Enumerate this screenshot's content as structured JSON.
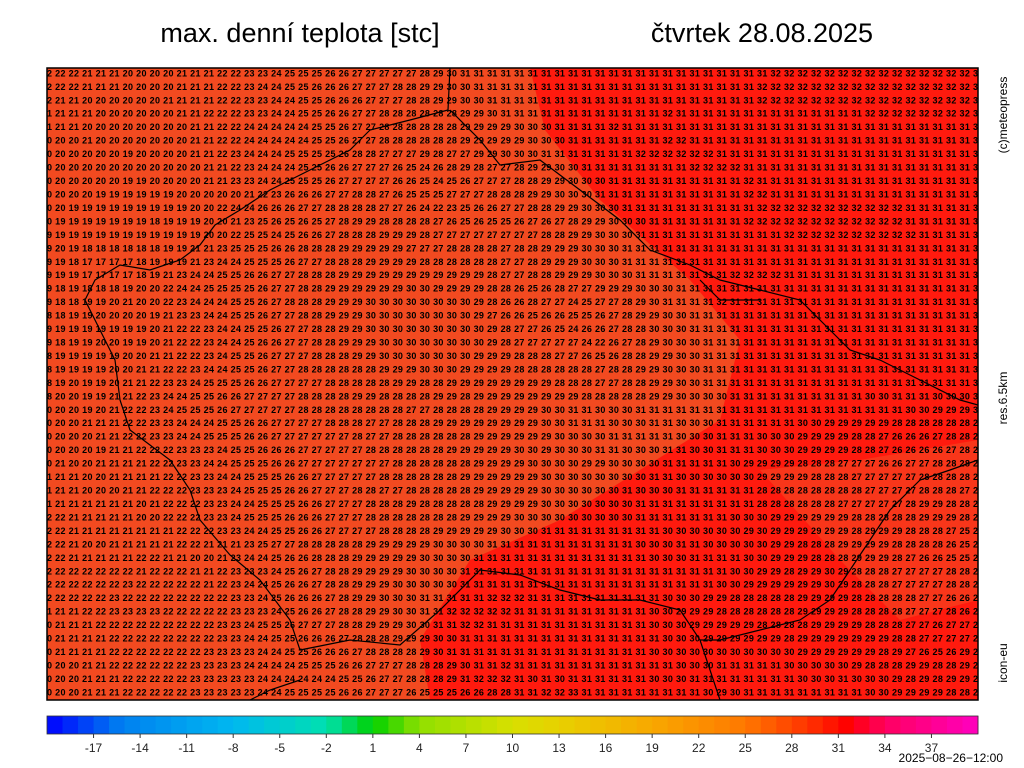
{
  "header": {
    "title": "max. denní teplota [stc]",
    "date": "čtvrtek 28.08.2025"
  },
  "side": {
    "copyright": "(c)meteopress",
    "resolution": "res.6.5km",
    "model": "icon-eu"
  },
  "footer": {
    "timestamp": "2025−08−26−12:00"
  },
  "colorbar": {
    "range": [
      -20,
      40
    ],
    "ticks": [
      -17,
      -14,
      -11,
      -8,
      -5,
      -2,
      1,
      4,
      7,
      10,
      13,
      16,
      19,
      22,
      25,
      28,
      31,
      34,
      37
    ]
  },
  "grid": {
    "rows": [
      "2 22 22 21 21 21 20 20 20 20 21 21 21 22 22 23 23 24 25 25 25 26 26 27 27 27 27 27 28 29 30 31 31 31 31 31 31 31 31 31 31 31 31 31 31 31 31 31 31 31 31 31 31 31 32 32 32 32 32 32 32 32 32 32 32 32 32 32 32 3",
      "2 22 22 21 21 21 20 20 20 20 21 21 21 22 22 23 24 24 25 25 26 26 26 27 27 27 28 28 29 29 30 30 31 31 31 31 31 31 31 31 31 31 31 31 31 31 31 31 31 31 31 31 31 32 32 32 32 32 32 32 32 32 32 32 32 32 32 32 32 3",
      "2 21 21 20 20 20 20 20 20 21 21 21 21 22 22 23 23 24 24 25 25 26 26 26 27 27 27 28 28 29 29 30 30 31 31 31 31 31 31 31 31 31 31 31 31 31 31 31 31 31 31 31 31 32 32 32 32 32 32 32 32 32 32 32 32 32 32 32 32 3",
      "1 21 21 21 20 20 20 20 20 20 21 21 22 22 22 23 23 24 24 25 25 26 26 27 27 28 28 28 28 28 28 29 29 30 31 31 31 31 31 31 31 31 31 31 31 31 32 31 31 31 31 31 31 31 31 31 31 31 31 31 31 32 32 32 32 32 32 32 32 3",
      "1 21 21 20 20 20 20 20 20 20 20 21 21 22 22 24 24 24 24 24 25 25 26 27 27 28 28 28 28 28 28 29 29 29 29 30 30 30 31 31 31 31 32 31 31 31 31 31 31 31 31 31 31 31 31 31 31 31 31 31 31 31 31 31 31 31 31 31 31 3",
      "0 20 20 21 20 20 20 20 20 20 20 21 21 22 22 24 24 24 24 24 25 25 26 27 27 28 28 28 28 28 28 29 29 29 29 29 30 30 30 31 31 31 31 31 31 31 32 32 31 31 31 31 31 31 31 31 31 31 31 31 31 31 31 31 31 31 31 31 31 3",
      "0 20 20 20 20 20 19 20 20 20 20 21 21 22 23 24 24 24 25 25 25 25 26 28 28 27 27 27 29 28 27 27 29 29 30 30 30 31 31 31 31 31 31 31 32 32 32 32 32 32 31 31 31 31 31 31 31 31 31 31 31 31 31 31 31 31 31 31 31 3",
      "0 20 20 20 20 20 20 20 20 20 20 20 21 21 22 23 24 24 24 25 25 26 26 27 27 27 26 25 24 26 28 29 28 27 27 28 29 29 30 30 31 31 31 31 31 31 31 31 32 32 32 32 31 31 31 31 31 31 31 31 31 31 31 31 31 31 31 31 31 3",
      "0 20 20 20 20 20 19 19 20 20 20 20 21 21 23 23 24 24 25 25 25 26 27 27 27 27 26 26 25 24 25 26 27 27 27 28 28 29 29 30 30 30 31 31 31 31 31 31 31 31 31 31 32 31 31 31 31 31 31 31 31 31 31 31 31 31 31 31 31 3",
      "0 20 20 20 19 19 19 19 19 19 20 20 20 20 20 21 22 23 26 26 26 27 27 28 28 27 26 25 25 25 27 27 27 28 28 28 29 29 30 30 30 31 31 31 31 31 31 31 31 31 31 31 32 32 31 31 31 31 31 31 31 31 31 31 31 31 31 31 31 3",
      "0 20 19 19 19 19 19 19 19 19 19 20 20 22 24 24 26 26 26 27 27 28 28 28 28 27 27 26 24 22 23 25 26 26 27 27 28 28 29 29 30 30 30 31 31 31 31 31 31 31 31 31 31 32 32 32 32 32 32 32 32 32 32 32 31 31 31 31 31 3",
      "0 19 19 19 19 19 19 19 18 19 19 19 20 20 21 23 25 26 25 26 25 27 28 29 29 28 28 28 28 27 26 25 26 25 25 26 27 26 27 28 29 29 30 30 30 31 31 31 31 31 31 31 32 32 32 32 32 32 32 32 32 32 32 32 31 31 31 31 31 3",
      "9 19 19 19 19 19 19 19 19 19 19 19 20 20 22 25 25 24 25 26 26 27 28 28 28 29 29 29 28 27 27 27 27 27 27 27 27 28 28 29 29 30 30 30 31 31 31 31 31 31 31 31 31 31 31 32 32 32 32 32 32 32 32 32 32 31 31 31 31 3",
      "9 20 19 18 18 18 18 18 18 19 19 21 21 23 25 25 25 26 26 28 28 28 29 29 29 29 29 27 27 27 28 28 28 28 27 28 28 29 29 29 30 30 30 31 31 31 31 31 31 31 31 31 31 31 31 31 31 31 31 31 31 31 31 31 31 31 31 31 31 3",
      "9 19 18 17 17 17 17 18 19 19 19 21 23 24 24 25 25 25 26 27 27 28 28 28 29 29 29 29 28 28 28 28 28 28 27 27 28 29 29 29 30 30 30 31 31 31 31 31 31 31 31 31 31 31 31 31 31 31 31 31 31 31 31 31 31 31 31 31 31 3",
      "9 19 19 17 17 17 17 18 19 21 23 24 24 25 25 26 26 27 27 28 28 28 29 29 29 29 29 29 29 29 29 29 29 28 27 27 28 28 29 29 29 30 30 30 31 31 31 31 31 31 31 32 32 32 32 31 31 31 31 31 31 31 31 31 31 31 31 31 31 3",
      "9 18 19 18 18 18 19 20 20 22 24 24 25 25 25 25 26 27 27 28 28 29 29 29 29 29 29 30 30 29 29 29 29 28 28 26 25 26 28 27 27 29 29 29 30 30 30 31 31 31 31 31 31 31 31 31 31 31 31 31 31 31 31 31 31 31 31 31 31 3",
      "9 18 18 19 19 20 21 20 20 22 23 24 24 24 25 25 26 27 28 28 28 29 29 29 30 30 30 30 30 30 30 30 29 28 26 26 28 27 27 24 25 27 27 28 29 30 31 31 31 31 32 31 31 31 31 31 31 31 31 31 31 31 31 31 31 31 31 31 31 3",
      "8 18 19 19 20 20 20 20 19 21 23 23 24 24 25 25 26 27 27 28 28 29 29 29 30 30 30 30 30 30 30 30 29 27 26 26 25 26 26 25 25 26 27 28 29 29 30 30 31 31 31 31 31 31 31 31 31 31 31 31 31 31 31 31 31 31 31 31 31 3",
      "9 19 19 19 19 19 19 19 20 21 22 22 23 24 24 25 25 26 27 27 28 28 29 29 30 30 30 30 30 30 30 30 30 29 28 27 27 26 25 24 26 26 27 28 28 30 30 30 31 31 31 31 31 31 31 31 31 31 31 31 31 31 31 31 31 31 31 31 31 3",
      "9 18 19 19 20 20 19 19 20 21 22 22 23 24 24 25 26 26 27 27 28 28 29 29 29 30 30 30 30 30 30 30 30 29 28 27 27 27 27 27 24 22 26 27 28 29 30 30 30 31 31 31 31 31 31 31 31 31 31 31 31 31 31 31 31 31 31 31 31 3",
      "8 19 19 19 19 19 20 20 21 21 22 22 23 24 25 25 26 27 27 27 28 28 28 29 29 30 30 30 30 30 30 30 29 29 29 28 28 28 27 27 26 25 26 28 28 29 29 30 30 31 31 31 31 31 31 31 31 31 31 31 31 31 31 31 31 31 31 31 31 3",
      "8 19 19 19 19 20 20 21 21 22 22 23 24 24 25 25 26 27 27 28 28 28 28 28 28 29 29 29 30 30 30 29 29 29 29 28 28 28 28 28 28 27 28 28 29 29 30 30 30 31 31 31 31 31 31 31 31 31 31 31 31 31 31 31 31 31 31 31 31 3",
      "8 19 20 19 19 20 21 21 22 23 23 24 25 25 25 26 26 27 27 27 27 28 28 28 28 28 29 29 28 28 29 29 29 29 29 29 29 29 28 28 28 27 27 28 28 29 29 30 30 31 31 31 31 31 31 31 31 31 31 31 31 31 31 31 31 31 31 31 31 3",
      "8 20 20 19 19 21 21 22 23 24 24 25 25 26 26 27 27 27 27 28 28 28 28 29 29 28 28 28 28 29 29 28 29 29 29 29 29 29 29 29 28 28 28 28 28 29 29 30 30 30 30 31 31 31 31 31 31 31 31 31 31 30 30 31 31 31 30 30 30 3",
      "0 20 20 19 20 21 22 22 23 24 25 25 25 26 27 27 27 27 27 28 28 28 28 28 28 28 28 27 27 28 28 28 28 29 29 29 29 30 30 31 31 30 30 30 31 31 31 31 31 31 31 31 31 31 31 31 31 31 31 31 31 31 31 31 30 30 29 29 29 3",
      "0 20 20 21 21 21 22 22 23 23 24 24 24 25 25 26 26 27 27 27 27 28 28 28 27 27 28 28 28 29 29 29 29 29 29 29 29 30 30 31 31 31 30 30 30 31 31 30 30 30 31 31 31 31 31 31 30 30 29 29 29 29 29 28 28 28 28 28 28 2",
      "0 20 20 20 21 21 22 22 23 23 24 24 25 25 25 26 26 27 27 27 27 27 27 28 27 27 28 28 28 28 28 28 29 29 29 29 29 29 30 30 30 30 31 31 31 31 31 30 30 30 31 31 31 30 30 30 29 29 29 29 28 28 27 26 26 26 27 28 28 2",
      "0 20 20 20 19 21 21 22 22 22 23 23 23 24 25 25 26 26 26 27 27 27 27 27 28 28 28 28 28 28 29 29 29 29 29 30 30 29 30 30 30 31 31 30 30 30 31 31 30 30 31 31 31 30 30 30 29 29 29 29 28 28 27 26 26 26 26 27 28 2",
      "0 21 20 20 21 21 21 21 22 22 23 23 24 24 25 25 25 26 26 27 27 27 27 27 27 27 28 28 28 28 28 28 29 29 29 29 30 30 30 30 29 29 30 30 30 30 31 31 31 31 31 30 29 29 29 29 28 28 28 27 27 27 26 26 27 27 28 28 28 2",
      "1 21 21 20 20 21 21 21 21 22 22 23 23 24 24 25 25 25 26 26 27 27 27 27 27 28 28 28 28 28 28 29 29 29 29 29 29 30 30 30 30 30 30 30 30 31 31 30 30 30 30 30 30 29 29 29 29 28 28 28 27 27 27 27 27 28 28 28 28 2",
      "1 21 21 20 20 20 21 21 22 22 22 23 23 23 24 25 25 25 26 26 27 27 27 28 28 27 27 28 28 28 28 28 29 29 29 29 29 30 30 30 30 30 30 31 30 30 30 31 31 31 31 31 31 28 28 28 28 28 28 28 28 27 27 27 27 28 28 28 27 2",
      "1 21 21 21 21 21 21 20 21 22 22 22 23 23 24 24 25 25 25 26 26 27 27 27 28 28 28 29 28 28 28 28 28 29 29 29 29 30 30 30 30 30 30 30 31 31 31 31 31 31 31 31 31 28 28 28 28 28 28 27 27 27 27 27 28 29 29 28 28 2",
      "2 22 21 21 21 21 21 20 20 22 22 22 23 23 24 25 25 25 26 26 26 27 27 27 28 28 28 28 28 28 28 29 29 29 29 30 30 30 30 30 30 30 30 30 31 31 31 31 31 31 31 30 30 30 29 29 29 29 29 29 28 28 28 28 28 29 29 29 28 2",
      "2 22 21 21 21 21 21 21 21 21 22 22 22 23 23 24 24 25 25 26 26 27 27 27 27 28 28 28 28 29 29 29 29 29 30 30 30 31 31 31 31 31 31 31 31 31 30 30 30 30 30 30 29 30 29 29 29 29 29 29 28 29 29 29 28 28 28 27 25 2",
      "2 22 21 20 20 21 21 21 21 21 22 22 21 21 21 23 25 27 27 28 28 28 28 28 29 29 29 29 29 30 30 30 30 31 31 31 31 31 31 31 31 31 31 31 30 30 30 31 31 30 30 30 30 30 29 29 28 28 28 29 29 29 29 28 28 28 28 26 25 2",
      "2 22 21 21 21 21 21 22 22 21 21 20 20 21 23 24 24 25 26 26 28 28 28 29 29 29 29 29 30 30 30 30 31 31 31 31 31 31 31 31 31 31 31 31 31 30 30 30 31 31 31 31 30 30 29 29 29 28 28 28 29 29 29 28 27 26 26 25 25 2",
      "2 22 22 22 22 22 22 21 22 22 22 21 21 22 23 23 23 24 25 26 27 28 28 29 29 29 29 30 30 30 30 31 31 31 31 31 31 31 31 31 31 31 31 31 31 31 31 31 31 31 31 30 30 29 29 28 29 29 30 29 28 28 28 27 27 27 27 28 28 2",
      "2 22 22 22 22 22 23 22 22 22 22 22 21 22 23 24 24 25 26 26 27 28 28 29 29 29 30 30 30 30 30 31 31 31 31 31 31 31 31 31 31 31 31 31 31 31 31 31 31 31 30 30 29 29 29 29 29 29 30 29 28 28 28 27 27 27 27 28 28 2",
      "2 22 22 22 22 23 22 22 22 22 22 22 22 22 23 23 24 25 26 26 26 27 28 29 29 30 30 30 31 31 31 31 31 32 32 32 31 31 31 31 31 31 31 31 31 31 30 30 30 29 29 28 28 28 28 28 29 29 29 29 28 28 28 28 28 27 27 26 26 2",
      "1 21 21 22 22 23 23 23 23 22 22 22 22 22 23 23 23 24 25 26 26 27 28 28 29 29 30 30 31 31 32 32 32 32 32 31 31 31 31 31 31 31 31 31 31 30 30 29 29 29 28 28 28 28 28 28 29 29 29 29 28 28 28 28 27 27 27 28 26 2",
      "0 21 21 21 22 22 22 22 22 22 22 22 22 23 23 24 25 25 26 27 27 27 28 28 29 29 29 30 30 31 31 32 32 31 31 31 31 31 31 31 31 31 31 31 31 30 30 30 29 29 29 29 29 28 28 28 28 29 29 29 29 28 28 28 27 27 26 27 27 2",
      "0 21 21 21 21 22 22 22 22 22 22 22 22 23 23 24 24 25 25 26 26 26 27 28 28 28 29 29 29 30 30 31 31 31 31 31 31 31 31 31 31 31 31 31 31 31 30 30 30 29 29 29 29 29 29 28 29 29 29 29 29 29 29 28 28 27 27 27 27 2",
      "0 21 21 21 21 22 22 22 22 22 22 22 23 23 23 23 24 24 25 25 26 26 26 27 28 28 28 28 29 30 31 31 31 31 31 31 31 31 31 31 31 31 31 31 31 30 30 30 30 30 30 30 30 30 30 30 29 29 29 29 29 29 28 29 27 26 25 26 29 2",
      "0 20 20 21 21 22 22 22 22 22 22 23 23 23 23 24 24 24 24 25 25 25 26 26 27 27 27 28 28 28 29 30 31 31 32 31 31 31 31 31 31 31 31 31 31 31 31 30 30 30 31 31 31 31 31 30 30 30 30 30 29 28 28 28 29 29 28 28 29 2",
      "0 20 20 21 21 21 22 22 22 22 22 23 23 23 23 23 24 24 24 24 24 24 25 25 26 27 27 28 28 28 29 31 32 32 32 31 30 31 30 31 31 31 31 31 31 30 30 30 31 31 31 31 31 31 31 31 30 30 30 31 30 30 30 29 28 29 28 29 29 2",
      "0 20 20 21 21 21 22 22 22 22 22 23 23 23 23 23 24 24 25 25 25 25 26 26 27 27 27 26 25 25 25 26 26 28 28 31 31 32 32 33 31 31 31 31 31 31 31 31 31 30 29 30 31 31 31 31 31 31 31 31 31 30 30 29 29 29 29 28 28 2"
    ]
  }
}
